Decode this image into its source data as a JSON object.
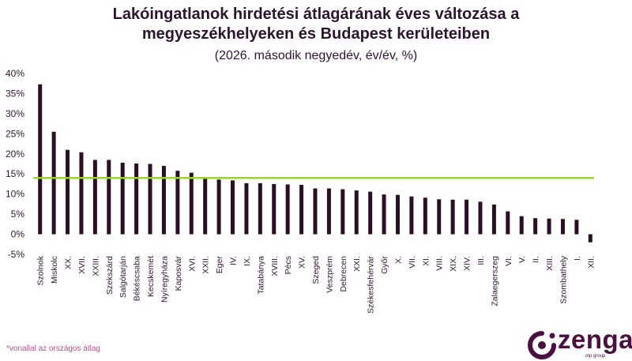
{
  "chart_data": {
    "type": "bar",
    "title_line1": "Lakóingatlanok hirdetési átlagárának éves változása a",
    "title_line2": "megyeszékhelyeken és Budapest kerületeiben",
    "subtitle": "(2026. második negyedév, év/év, %)",
    "categories": [
      "Szolnok",
      "Miskolc",
      "XX.",
      "XVII.",
      "XXIII.",
      "Szekszárd",
      "Salgótarján",
      "Békéscsaba",
      "Kecskemét",
      "Nyíregyháza",
      "Kaposvár",
      "XVI.",
      "XXII.",
      "Eger",
      "IV.",
      "IX.",
      "Tatabánya",
      "XVIII.",
      "Pécs",
      "XV.",
      "Szeged",
      "Veszprém",
      "Debrecen",
      "XXI.",
      "Székesfehérvár",
      "Győr",
      "X.",
      "VII.",
      "XI.",
      "VIII.",
      "XIX.",
      "XIV.",
      "III.",
      "Zalaegerszeg",
      "VI.",
      "V.",
      "II.",
      "XIII.",
      "Szombathely",
      "I.",
      "XII."
    ],
    "values": [
      37.3,
      25.5,
      21.0,
      20.4,
      18.5,
      18.5,
      17.8,
      17.6,
      17.5,
      17.0,
      15.8,
      15.3,
      13.9,
      13.6,
      13.4,
      12.7,
      12.7,
      12.5,
      12.4,
      12.3,
      11.4,
      11.4,
      11.2,
      10.9,
      10.6,
      9.9,
      9.8,
      9.4,
      9.1,
      8.7,
      8.6,
      8.6,
      8.1,
      7.4,
      5.7,
      4.5,
      4.0,
      3.9,
      3.8,
      3.6,
      -2.0
    ],
    "average_line": 14.0,
    "ylim": [
      -5,
      40
    ],
    "yticks": [
      -5,
      0,
      5,
      10,
      15,
      20,
      25,
      30,
      35,
      40
    ],
    "ytick_labels": [
      "-5%",
      "0%",
      "5%",
      "10%",
      "15%",
      "20%",
      "25%",
      "30%",
      "35%",
      "40%"
    ],
    "colors": {
      "bar": "#2b0f25",
      "average": "#9bd13a",
      "text": "#2d1530",
      "footnote": "#b4508a",
      "logo": "#4a1040"
    }
  },
  "footnote": "*vonallal az országos átlag",
  "logo": {
    "name": "zenga",
    "sub": "otp group"
  }
}
